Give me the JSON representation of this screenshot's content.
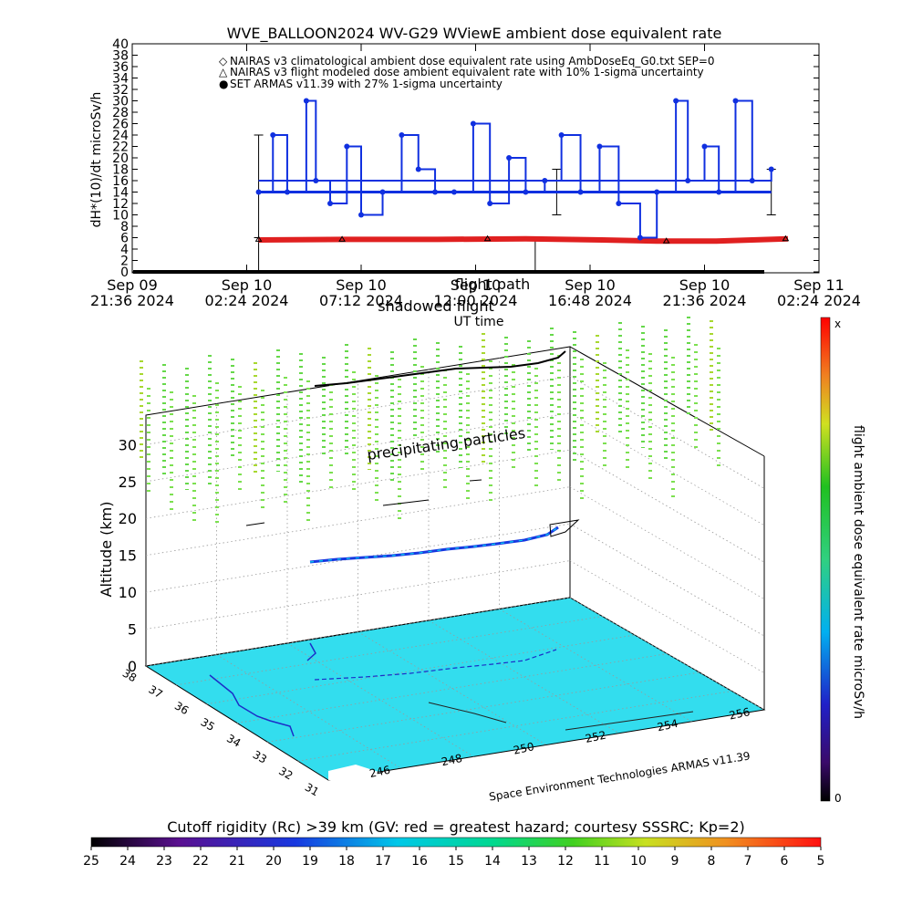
{
  "chart_data": [
    {
      "type": "scatter",
      "title": "WVE_BALLOON2024 WV-G29 WViewE ambient dose equivalent rate",
      "xlabel": "UT time",
      "ylabel": "dH*(10)/dt microSv/h",
      "ylim": [
        0,
        40
      ],
      "yticks": [
        "0",
        "2",
        "4",
        "6",
        "8",
        "10",
        "12",
        "14",
        "16",
        "18",
        "20",
        "22",
        "24",
        "26",
        "28",
        "30",
        "32",
        "34",
        "36",
        "38",
        "40"
      ],
      "xtick_labels": [
        {
          "line1": "Sep 09",
          "line2": "21:36 2024"
        },
        {
          "line1": "Sep 10",
          "line2": "02:24 2024"
        },
        {
          "line1": "Sep 10",
          "line2": "07:12 2024"
        },
        {
          "line1": "Sep 10",
          "line2": "12:00 2024"
        },
        {
          "line1": "Sep 10",
          "line2": "16:48 2024"
        },
        {
          "line1": "Sep 10",
          "line2": "21:36 2024"
        },
        {
          "line1": "Sep 11",
          "line2": "02:24 2024"
        }
      ],
      "xlim_hours": [
        0,
        28.8
      ],
      "legend_position": "top-left",
      "legend": [
        {
          "symbol": "◇",
          "label": "NAIRAS v3 climatological ambient dose equivalent rate using AmbDoseEq_G0.txt SEP=0",
          "color": "#d92020"
        },
        {
          "symbol": "△",
          "label": "NAIRAS v3 flight modeled dose ambient equivalent rate with 10% 1-sigma uncertainty",
          "color": "#000000"
        },
        {
          "symbol": "●",
          "label": "SET ARMAS v11.39 with 27% 1-sigma uncertainty",
          "color": "#1030e0"
        }
      ],
      "overlay_text": [
        "flight path",
        "shadowed flight"
      ],
      "series": [
        {
          "name": "SET ARMAS v11.39",
          "color": "#1030e0",
          "hours": [
            5.3,
            5.9,
            6.5,
            7.3,
            7.7,
            8.3,
            9.0,
            9.6,
            10.5,
            11.3,
            12.0,
            12.7,
            13.5,
            14.3,
            15.0,
            15.8,
            16.5,
            17.3,
            18.0,
            18.8,
            19.6,
            20.4,
            21.3,
            22.0,
            22.8,
            23.3,
            24.0,
            24.6,
            25.3,
            26.0,
            26.8
          ],
          "values": [
            14,
            24,
            14,
            30,
            16,
            12,
            22,
            10,
            14,
            24,
            18,
            14,
            14,
            26,
            12,
            20,
            14,
            16,
            24,
            14,
            22,
            12,
            6,
            14,
            30,
            16,
            22,
            14,
            30,
            16,
            18
          ]
        },
        {
          "name": "NAIRAS v3 climatological",
          "color": "#e02020",
          "hours": [
            5.3,
            9.0,
            12.8,
            16.5,
            19.7,
            22.0,
            24.5,
            27.5
          ],
          "values": [
            5.6,
            5.7,
            5.7,
            5.8,
            5.6,
            5.4,
            5.4,
            5.8
          ]
        },
        {
          "name": "NAIRAS v3 flight modeled",
          "color": "#000000",
          "hours": [
            5.3,
            8.8,
            14.9,
            22.4,
            27.4
          ],
          "values": [
            5.7,
            5.7,
            5.8,
            5.4,
            5.8
          ]
        }
      ]
    },
    {
      "type": "scatter",
      "subtype": "3d-flight-track",
      "zlabel": "Altitude (km)",
      "zticks": [
        "0",
        "5",
        "10",
        "15",
        "20",
        "25",
        "30"
      ],
      "lat_ticks": [
        "38",
        "37",
        "36",
        "35",
        "34",
        "33",
        "32",
        "31"
      ],
      "lon_ticks": [
        "246",
        "248",
        "250",
        "252",
        "254",
        "256"
      ],
      "annotations": [
        "precipitating particles"
      ],
      "credit": "Space Environment Technologies ARMAS v11.39",
      "colorbar": {
        "label": "flight ambient dose equivalent rate microSv/h",
        "top": "x",
        "bottom": "0"
      }
    },
    {
      "type": "heatmap",
      "title": "Cutoff rigidity (Rc) >39 km (GV: red = greatest hazard; courtesy SSSRC; Kp=2)",
      "colorbar_ticks": [
        "25",
        "24",
        "23",
        "22",
        "21",
        "20",
        "19",
        "18",
        "17",
        "16",
        "15",
        "14",
        "13",
        "12",
        "11",
        "10",
        "9",
        "8",
        "7",
        "6",
        "5"
      ]
    }
  ]
}
